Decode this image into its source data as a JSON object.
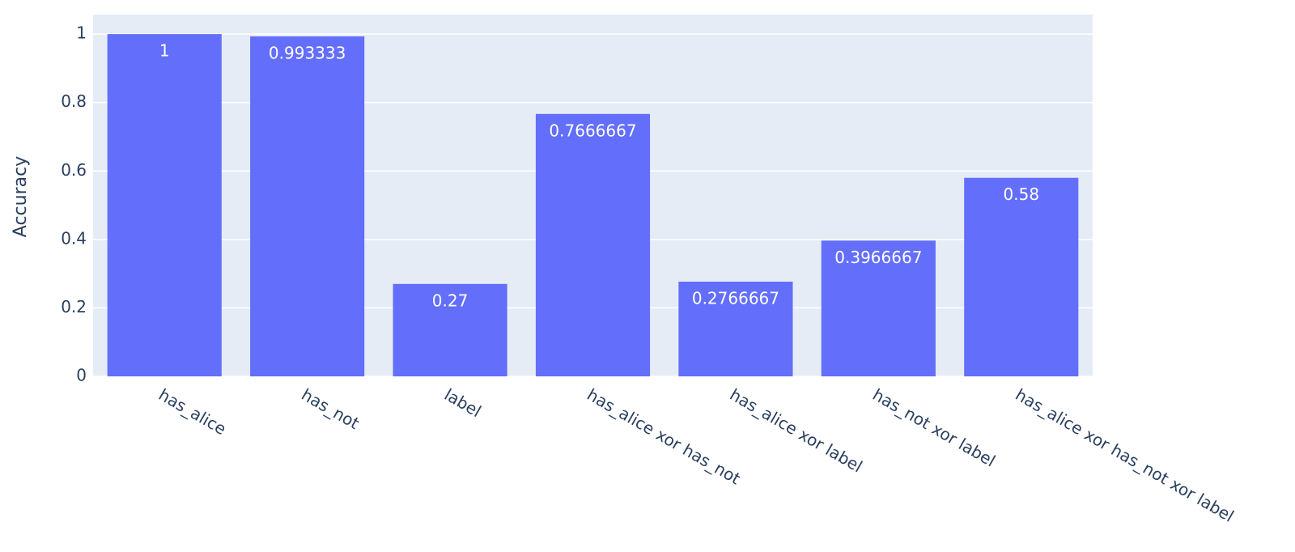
{
  "chart_data": {
    "type": "bar",
    "y_label": "Accuracy",
    "categories": [
      "has_alice",
      "has_not",
      "label",
      "has_alice xor has_not",
      "has_alice xor label",
      "has_not xor label",
      "has_alice xor has_not xor label"
    ],
    "values": [
      1,
      0.993333,
      0.27,
      0.7666667,
      0.2766667,
      0.3966667,
      0.58
    ],
    "color": "#636efa",
    "ylim": [
      0,
      1.057
    ],
    "yticks": [
      0,
      0.2,
      0.4,
      0.6,
      0.8,
      1
    ],
    "grid": true
  }
}
